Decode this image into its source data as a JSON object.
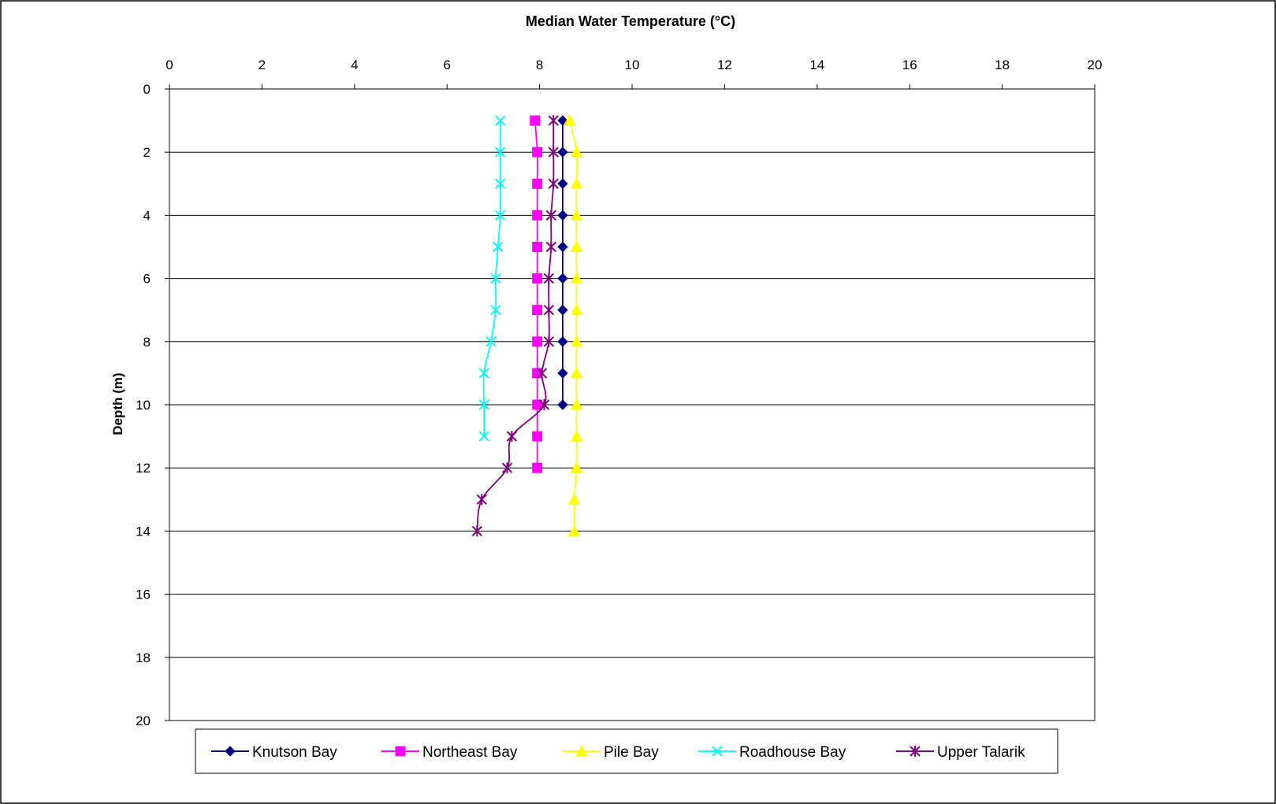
{
  "chart_data": {
    "type": "line",
    "title": "Median Water Temperature (°C)",
    "xlabel": "",
    "ylabel": "Depth (m)",
    "xlim": [
      0,
      20
    ],
    "ylim": [
      0,
      20
    ],
    "x_axis_position": "top",
    "y_axis_inverted": true,
    "x_ticks": [
      "0",
      "2",
      "4",
      "6",
      "8",
      "10",
      "12",
      "14",
      "16",
      "18",
      "20"
    ],
    "y_ticks": [
      "0",
      "2",
      "4",
      "6",
      "8",
      "10",
      "12",
      "14",
      "16",
      "18",
      "20"
    ],
    "grid": "horizontal",
    "legend_position": "bottom",
    "series": [
      {
        "name": "Knutson Bay",
        "color": "#000080",
        "marker": "diamond",
        "points": [
          [
            8.5,
            1
          ],
          [
            8.5,
            2
          ],
          [
            8.5,
            3
          ],
          [
            8.5,
            4
          ],
          [
            8.5,
            5
          ],
          [
            8.5,
            6
          ],
          [
            8.5,
            7
          ],
          [
            8.5,
            8
          ],
          [
            8.5,
            9
          ],
          [
            8.5,
            10
          ]
        ]
      },
      {
        "name": "Northeast Bay",
        "color": "#FF00FF",
        "marker": "square",
        "points": [
          [
            7.9,
            1
          ],
          [
            7.95,
            2
          ],
          [
            7.95,
            3
          ],
          [
            7.95,
            4
          ],
          [
            7.95,
            5
          ],
          [
            7.95,
            6
          ],
          [
            7.95,
            7
          ],
          [
            7.95,
            8
          ],
          [
            7.95,
            9
          ],
          [
            7.95,
            10
          ],
          [
            7.95,
            11
          ],
          [
            7.95,
            12
          ]
        ]
      },
      {
        "name": "Pile Bay",
        "color": "#FFFF00",
        "marker": "triangle",
        "points": [
          [
            8.65,
            1
          ],
          [
            8.8,
            2
          ],
          [
            8.8,
            3
          ],
          [
            8.8,
            4
          ],
          [
            8.8,
            5
          ],
          [
            8.8,
            6
          ],
          [
            8.8,
            7
          ],
          [
            8.8,
            8
          ],
          [
            8.8,
            9
          ],
          [
            8.8,
            10
          ],
          [
            8.8,
            11
          ],
          [
            8.8,
            12
          ],
          [
            8.75,
            13
          ],
          [
            8.75,
            14
          ]
        ]
      },
      {
        "name": "Roadhouse Bay",
        "color": "#00FFFF",
        "marker": "x",
        "points": [
          [
            7.15,
            1
          ],
          [
            7.15,
            2
          ],
          [
            7.15,
            3
          ],
          [
            7.15,
            4
          ],
          [
            7.1,
            5
          ],
          [
            7.05,
            6
          ],
          [
            7.05,
            7
          ],
          [
            6.95,
            8
          ],
          [
            6.8,
            9
          ],
          [
            6.8,
            10
          ],
          [
            6.8,
            11
          ]
        ]
      },
      {
        "name": "Upper Talarik",
        "color": "#800080",
        "marker": "star",
        "points": [
          [
            8.3,
            1
          ],
          [
            8.3,
            2
          ],
          [
            8.3,
            3
          ],
          [
            8.25,
            4
          ],
          [
            8.25,
            5
          ],
          [
            8.2,
            6
          ],
          [
            8.2,
            7
          ],
          [
            8.2,
            8
          ],
          [
            8.05,
            9
          ],
          [
            8.1,
            10
          ],
          [
            7.4,
            11
          ],
          [
            7.3,
            12
          ],
          [
            6.75,
            13
          ],
          [
            6.65,
            14
          ]
        ]
      }
    ]
  }
}
